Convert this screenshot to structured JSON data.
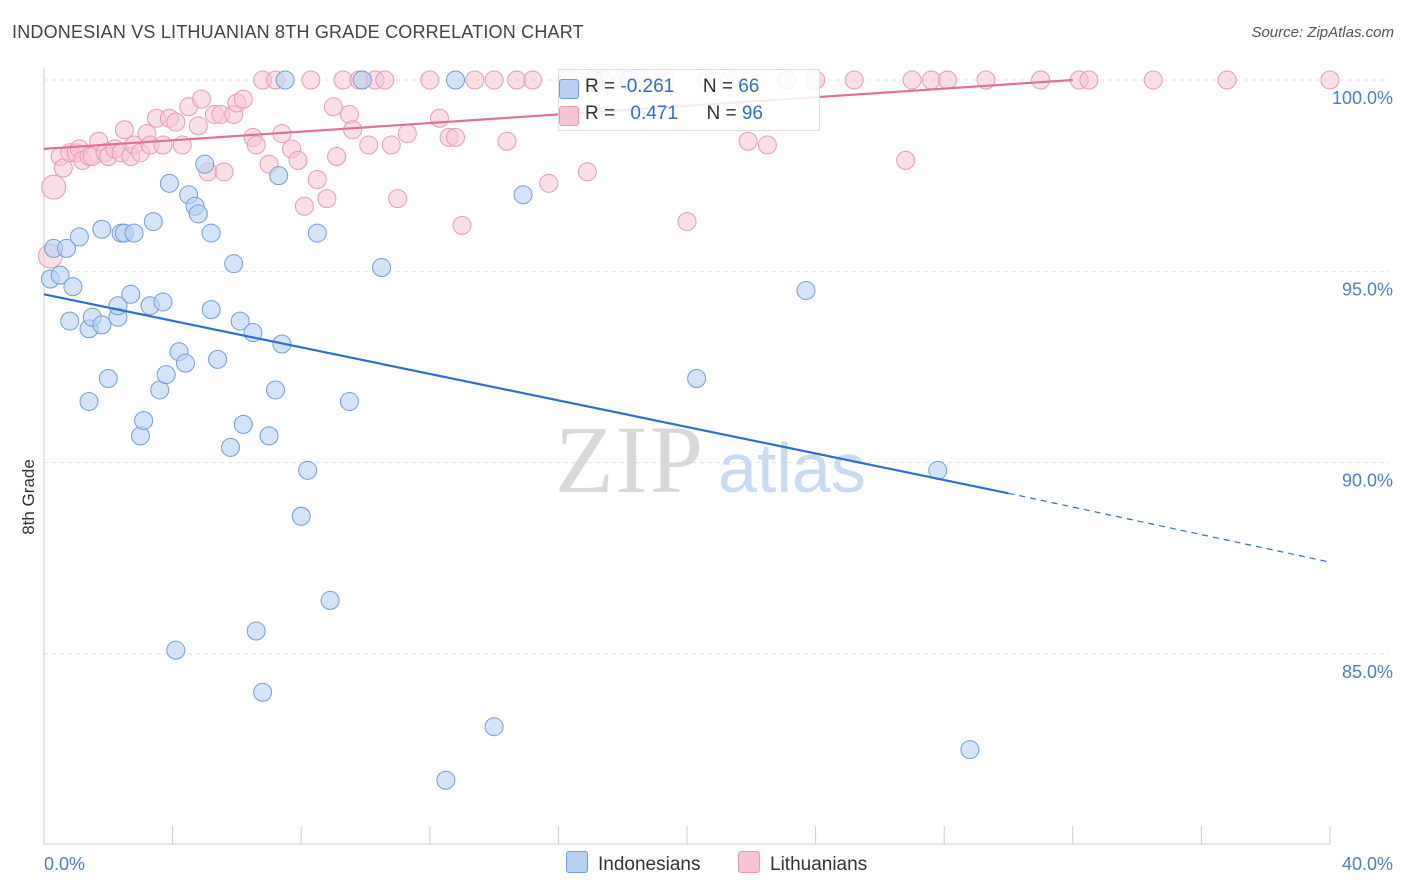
{
  "header": {
    "title": "INDONESIAN VS LITHUANIAN 8TH GRADE CORRELATION CHART",
    "source": "Source: ZipAtlas.com"
  },
  "watermark": {
    "zip": "ZIP",
    "atlas": "atlas"
  },
  "legend": {
    "rows": [
      {
        "r_label": "R = ",
        "r_value": "-0.261",
        "n_label": "N = ",
        "n_value": "66"
      },
      {
        "r_label": "R = ",
        "r_value": "0.471",
        "n_label": "N = ",
        "n_value": "96"
      }
    ],
    "bottom": [
      "Indonesians",
      "Lithuanians"
    ]
  },
  "colors": {
    "indonesian_fill": "#b8d0f2",
    "indonesian_stroke": "#6f9edc",
    "indonesian_line": "#2e6fd0",
    "lithuanian_fill": "#f8c4d4",
    "lithuanian_stroke": "#e89ab4",
    "lithuanian_line": "#e26f98"
  },
  "chart_data": {
    "type": "scatter",
    "title": "INDONESIAN VS LITHUANIAN 8TH GRADE CORRELATION CHART",
    "xlabel": "",
    "ylabel": "8th Grade",
    "xlim": [
      0,
      40
    ],
    "ylim": [
      80.5,
      100.8
    ],
    "x_tick_labels": [
      "0.0%",
      "40.0%"
    ],
    "y_ticks": [
      85,
      90,
      95,
      100
    ],
    "y_tick_labels": [
      "85.0%",
      "90.0%",
      "95.0%",
      "100.0%"
    ],
    "grid": true,
    "legend_position": "top-center",
    "series": [
      {
        "name": "Indonesians",
        "R": -0.261,
        "N": 66,
        "trend": {
          "x": [
            0,
            30
          ],
          "y": [
            94.4,
            89.2
          ]
        },
        "trend_dashed": {
          "x": [
            30,
            40
          ],
          "y": [
            89.2,
            87.4
          ]
        },
        "points": [
          [
            0.2,
            94.8
          ],
          [
            0.3,
            95.6
          ],
          [
            0.5,
            94.9
          ],
          [
            0.7,
            95.6
          ],
          [
            0.8,
            93.7
          ],
          [
            0.9,
            94.6
          ],
          [
            1.1,
            95.9
          ],
          [
            1.4,
            91.6
          ],
          [
            1.4,
            93.5
          ],
          [
            1.5,
            93.8
          ],
          [
            1.8,
            93.6
          ],
          [
            1.8,
            96.1
          ],
          [
            2.0,
            92.2
          ],
          [
            2.3,
            93.8
          ],
          [
            2.3,
            94.1
          ],
          [
            2.4,
            96.0
          ],
          [
            2.5,
            96.0
          ],
          [
            2.7,
            94.4
          ],
          [
            2.8,
            96.0
          ],
          [
            3.0,
            90.7
          ],
          [
            3.1,
            91.1
          ],
          [
            3.3,
            94.1
          ],
          [
            3.4,
            96.3
          ],
          [
            3.6,
            91.9
          ],
          [
            3.7,
            94.2
          ],
          [
            3.8,
            92.3
          ],
          [
            3.9,
            97.3
          ],
          [
            4.1,
            85.1
          ],
          [
            4.2,
            92.9
          ],
          [
            4.4,
            92.6
          ],
          [
            4.5,
            97.0
          ],
          [
            4.7,
            96.7
          ],
          [
            4.8,
            96.5
          ],
          [
            5.0,
            97.8
          ],
          [
            5.2,
            94.0
          ],
          [
            5.2,
            96.0
          ],
          [
            5.4,
            92.7
          ],
          [
            5.8,
            90.4
          ],
          [
            5.9,
            95.2
          ],
          [
            6.1,
            93.7
          ],
          [
            6.2,
            91.0
          ],
          [
            6.5,
            93.4
          ],
          [
            6.6,
            85.6
          ],
          [
            6.8,
            84.0
          ],
          [
            7.0,
            90.7
          ],
          [
            7.2,
            91.9
          ],
          [
            7.3,
            97.5
          ],
          [
            7.4,
            93.1
          ],
          [
            7.5,
            100.0
          ],
          [
            8.0,
            88.6
          ],
          [
            8.2,
            89.8
          ],
          [
            8.5,
            96.0
          ],
          [
            8.9,
            86.4
          ],
          [
            9.5,
            91.6
          ],
          [
            9.9,
            100.0
          ],
          [
            10.5,
            95.1
          ],
          [
            12.5,
            81.7
          ],
          [
            12.8,
            100.0
          ],
          [
            14.0,
            83.1
          ],
          [
            14.9,
            97.0
          ],
          [
            17.1,
            100.0
          ],
          [
            18.2,
            100.0
          ],
          [
            20.3,
            92.2
          ],
          [
            23.7,
            94.5
          ],
          [
            27.8,
            89.8
          ],
          [
            28.8,
            82.5
          ]
        ]
      },
      {
        "name": "Lithuanians",
        "R": 0.471,
        "N": 96,
        "trend": {
          "x": [
            0,
            32
          ],
          "y": [
            98.2,
            100.0
          ]
        },
        "points": [
          [
            0.2,
            95.4
          ],
          [
            0.3,
            97.2
          ],
          [
            0.5,
            98.0
          ],
          [
            0.6,
            97.7
          ],
          [
            0.8,
            98.1
          ],
          [
            1.0,
            98.1
          ],
          [
            1.1,
            98.2
          ],
          [
            1.2,
            97.9
          ],
          [
            1.4,
            98.0
          ],
          [
            1.5,
            98.0
          ],
          [
            1.7,
            98.4
          ],
          [
            1.9,
            98.1
          ],
          [
            2.0,
            98.0
          ],
          [
            2.2,
            98.2
          ],
          [
            2.4,
            98.1
          ],
          [
            2.5,
            98.7
          ],
          [
            2.7,
            98.0
          ],
          [
            2.8,
            98.3
          ],
          [
            3.0,
            98.1
          ],
          [
            3.2,
            98.6
          ],
          [
            3.3,
            98.3
          ],
          [
            3.5,
            99.0
          ],
          [
            3.7,
            98.3
          ],
          [
            3.9,
            99.0
          ],
          [
            4.1,
            98.9
          ],
          [
            4.3,
            98.3
          ],
          [
            4.5,
            99.3
          ],
          [
            4.8,
            98.8
          ],
          [
            4.9,
            99.5
          ],
          [
            5.1,
            97.6
          ],
          [
            5.3,
            99.1
          ],
          [
            5.5,
            99.1
          ],
          [
            5.6,
            97.6
          ],
          [
            5.9,
            99.1
          ],
          [
            6.0,
            99.4
          ],
          [
            6.2,
            99.5
          ],
          [
            6.5,
            98.5
          ],
          [
            6.6,
            98.3
          ],
          [
            6.8,
            100.0
          ],
          [
            7.0,
            97.8
          ],
          [
            7.2,
            100.0
          ],
          [
            7.4,
            98.6
          ],
          [
            7.7,
            98.2
          ],
          [
            7.9,
            97.9
          ],
          [
            8.1,
            96.7
          ],
          [
            8.3,
            100.0
          ],
          [
            8.5,
            97.4
          ],
          [
            8.8,
            96.9
          ],
          [
            9.0,
            99.3
          ],
          [
            9.1,
            98.0
          ],
          [
            9.3,
            100.0
          ],
          [
            9.5,
            99.1
          ],
          [
            9.6,
            98.7
          ],
          [
            9.8,
            100.0
          ],
          [
            10.1,
            98.3
          ],
          [
            10.3,
            100.0
          ],
          [
            10.6,
            100.0
          ],
          [
            10.8,
            98.3
          ],
          [
            11.0,
            96.9
          ],
          [
            11.3,
            98.6
          ],
          [
            12.0,
            100.0
          ],
          [
            12.3,
            99.0
          ],
          [
            12.6,
            98.5
          ],
          [
            12.8,
            98.5
          ],
          [
            13.0,
            96.2
          ],
          [
            13.4,
            100.0
          ],
          [
            14.0,
            100.0
          ],
          [
            14.4,
            98.4
          ],
          [
            14.7,
            100.0
          ],
          [
            15.2,
            100.0
          ],
          [
            15.7,
            97.3
          ],
          [
            16.3,
            100.0
          ],
          [
            16.9,
            97.6
          ],
          [
            17.4,
            100.0
          ],
          [
            18.0,
            100.0
          ],
          [
            18.6,
            100.0
          ],
          [
            19.3,
            100.0
          ],
          [
            20.0,
            96.3
          ],
          [
            20.6,
            100.0
          ],
          [
            21.3,
            100.0
          ],
          [
            21.9,
            98.4
          ],
          [
            22.5,
            98.3
          ],
          [
            23.1,
            100.0
          ],
          [
            24.0,
            100.0
          ],
          [
            25.2,
            100.0
          ],
          [
            26.8,
            97.9
          ],
          [
            27.0,
            100.0
          ],
          [
            27.6,
            100.0
          ],
          [
            28.1,
            100.0
          ],
          [
            29.3,
            100.0
          ],
          [
            31.0,
            100.0
          ],
          [
            32.2,
            100.0
          ],
          [
            32.5,
            100.0
          ],
          [
            34.5,
            100.0
          ],
          [
            36.8,
            100.0
          ],
          [
            40.0,
            100.0
          ]
        ]
      }
    ]
  }
}
